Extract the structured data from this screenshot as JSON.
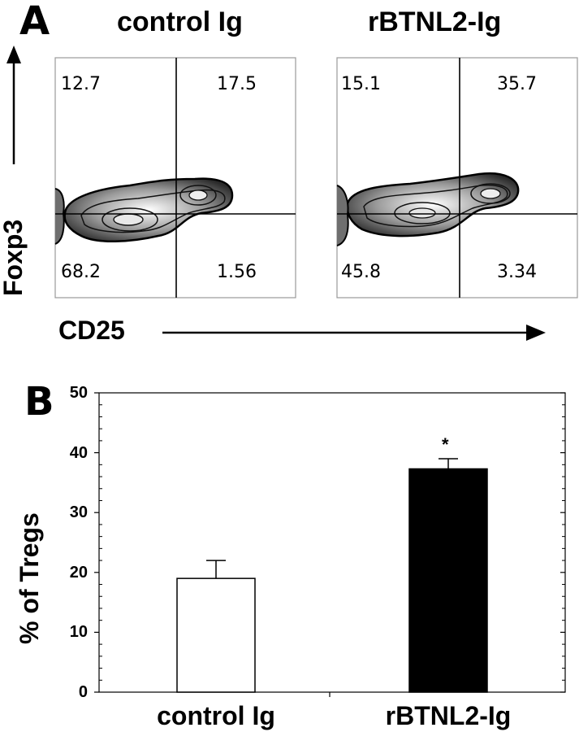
{
  "panel_a": {
    "letter": "A",
    "y_axis_label": "Foxp3",
    "x_axis_label": "CD25",
    "plots": [
      {
        "title": "control Ig",
        "quadrants": {
          "upper_left": "12.7",
          "upper_right": "17.5",
          "lower_left": "68.2",
          "lower_right": "1.56"
        }
      },
      {
        "title": "rBTNL2-Ig",
        "quadrants": {
          "upper_left": "15.1",
          "upper_right": "35.7",
          "lower_left": "45.8",
          "lower_right": "3.34"
        }
      }
    ]
  },
  "panel_b": {
    "letter": "B",
    "significance_mark": "*"
  },
  "chart_data": {
    "type": "bar",
    "categories": [
      "control Ig",
      "rBTNL2-Ig"
    ],
    "values": [
      19,
      37.3
    ],
    "errors": [
      3,
      1.7
    ],
    "ylabel": "% of Tregs",
    "xlabel": "",
    "ylim": [
      0,
      50
    ],
    "yticks": [
      "0",
      "10",
      "20",
      "30",
      "40",
      "50"
    ],
    "bar_colors": [
      "#ffffff",
      "#000000"
    ],
    "grid": false
  }
}
